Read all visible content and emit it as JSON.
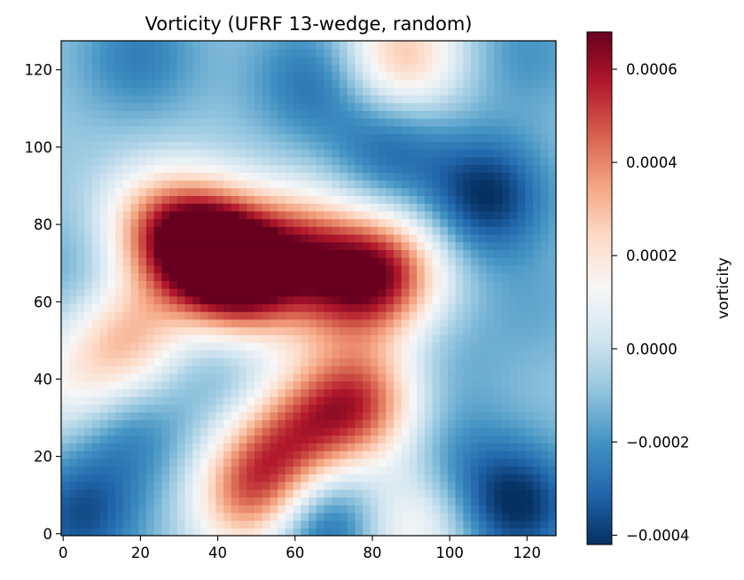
{
  "chart_data": {
    "type": "heatmap",
    "title": "Vorticity (UFRF 13-wedge, random)",
    "xlabel": "",
    "ylabel": "",
    "colorbar_label": "vorticity",
    "colormap": "RdBu_r",
    "colormap_stops": [
      "#053061",
      "#2166ac",
      "#4393c3",
      "#92c5de",
      "#d1e5f0",
      "#f7f7f7",
      "#fddbc7",
      "#f4a582",
      "#d6604d",
      "#b2182b",
      "#67001f"
    ],
    "grid": false,
    "x_ticks": [
      0,
      20,
      40,
      60,
      80,
      100,
      120
    ],
    "y_ticks": [
      0,
      20,
      40,
      60,
      80,
      100,
      120
    ],
    "xlim": [
      0,
      127
    ],
    "ylim": [
      0,
      127
    ],
    "vmin": -0.00042,
    "vmax": 0.00068,
    "colorbar_ticks": [
      -0.0004,
      -0.0002,
      0.0,
      0.0002,
      0.0004,
      0.0006
    ],
    "colorbar_tick_labels": [
      "−0.0004",
      "−0.0002",
      "0.0000",
      "0.0002",
      "0.0004",
      "0.0006"
    ],
    "background_value": -8e-05,
    "features": [
      {
        "x": 38,
        "y": 74,
        "value": 0.00068
      },
      {
        "x": 48,
        "y": 66,
        "value": 0.00048
      },
      {
        "x": 25,
        "y": 80,
        "value": 0.0003
      },
      {
        "x": 62,
        "y": 76,
        "value": 0.00025
      },
      {
        "x": 84,
        "y": 68,
        "value": 0.00045
      },
      {
        "x": 72,
        "y": 65,
        "value": 0.00028
      },
      {
        "x": 17,
        "y": 51,
        "value": 0.00028
      },
      {
        "x": 78,
        "y": 35,
        "value": 0.0004
      },
      {
        "x": 65,
        "y": 30,
        "value": 0.00022
      },
      {
        "x": 48,
        "y": 10,
        "value": 0.00035
      },
      {
        "x": 56,
        "y": 20,
        "value": 0.00025
      },
      {
        "x": 88,
        "y": 124,
        "value": 0.0003
      },
      {
        "x": 90,
        "y": 3,
        "value": 0.00018
      },
      {
        "x": 5,
        "y": 36,
        "value": 0.00015
      },
      {
        "x": 110,
        "y": 88,
        "value": -0.00042
      },
      {
        "x": 118,
        "y": 8,
        "value": -0.00042
      },
      {
        "x": 68,
        "y": 4,
        "value": -0.0004
      },
      {
        "x": 5,
        "y": 5,
        "value": -0.00035
      },
      {
        "x": 15,
        "y": 28,
        "value": -0.0003
      },
      {
        "x": 20,
        "y": 124,
        "value": -0.00025
      },
      {
        "x": 85,
        "y": 100,
        "value": -0.0003
      },
      {
        "x": 65,
        "y": 118,
        "value": -0.00028
      },
      {
        "x": 5,
        "y": 68,
        "value": -0.00018
      },
      {
        "x": 120,
        "y": 125,
        "value": -0.0002
      },
      {
        "x": 40,
        "y": 45,
        "value": -0.00018
      },
      {
        "x": 100,
        "y": 45,
        "value": -0.00015
      },
      {
        "x": 102,
        "y": 20,
        "value": -0.0002
      },
      {
        "x": 35,
        "y": 15,
        "value": -0.00012
      },
      {
        "x": 122,
        "y": 60,
        "value": -0.00015
      }
    ]
  }
}
